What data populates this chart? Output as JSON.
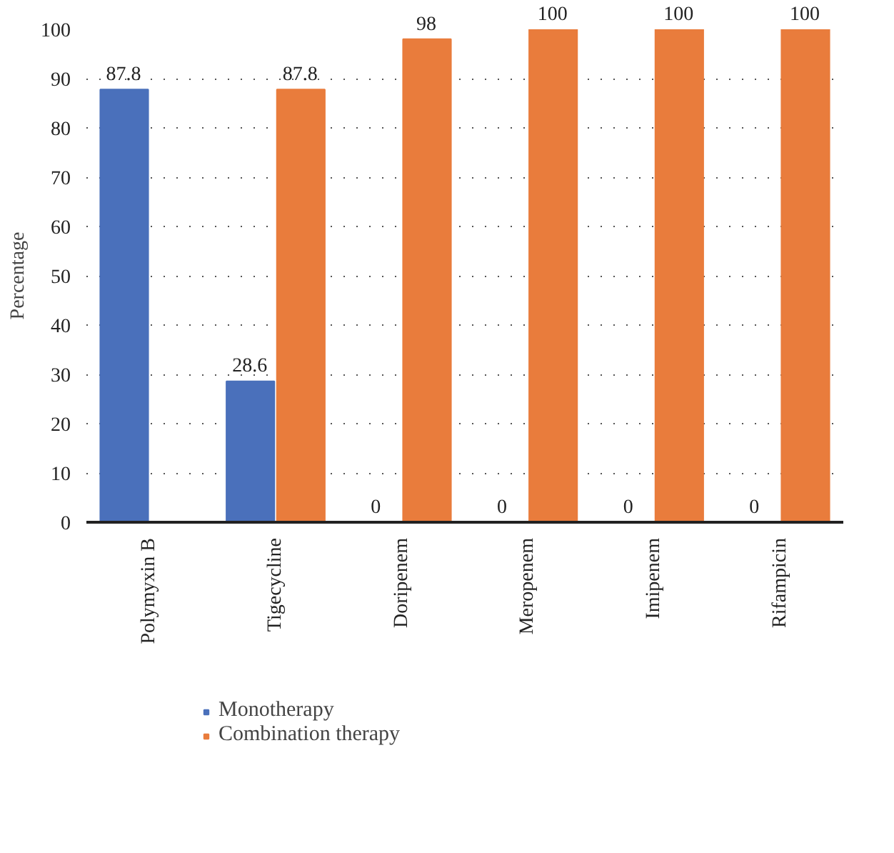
{
  "chart_data": {
    "type": "bar",
    "ylabel": "Percentage",
    "categories": [
      "Polymyxin B",
      "Tigecycline",
      "Doripenem",
      "Meropenem",
      "Imipenem",
      "Rifampicin"
    ],
    "series": [
      {
        "name": "Monotherapy",
        "color": "#4a70bb",
        "values": [
          87.8,
          28.6,
          0,
          0,
          0,
          0
        ]
      },
      {
        "name": "Combination therapy",
        "color": "#e97c3c",
        "values": [
          null,
          87.8,
          98,
          100,
          100,
          100
        ]
      }
    ],
    "ylim": [
      0,
      100
    ],
    "yticks": [
      0,
      10,
      20,
      30,
      40,
      50,
      60,
      70,
      80,
      90,
      100
    ],
    "grid": "y",
    "legend": "bottom",
    "data_labels": true
  }
}
